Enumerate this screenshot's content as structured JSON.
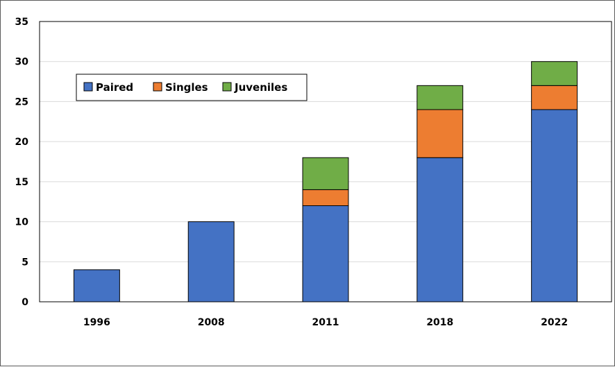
{
  "chart_data": {
    "type": "bar",
    "stacked": true,
    "categories": [
      "1996",
      "2008",
      "2011",
      "2018",
      "2022"
    ],
    "series": [
      {
        "name": "Paired",
        "values": [
          4,
          10,
          12,
          18,
          24
        ],
        "color": "#4472C4"
      },
      {
        "name": "Singles",
        "values": [
          0,
          0,
          2,
          6,
          3
        ],
        "color": "#ED7D31"
      },
      {
        "name": "Juveniles",
        "values": [
          0,
          0,
          4,
          3,
          3
        ],
        "color": "#70AD47"
      }
    ],
    "title": "",
    "xlabel": "",
    "ylabel": "",
    "ylim": [
      0,
      35
    ],
    "yticks": [
      0,
      5,
      10,
      15,
      20,
      25,
      30,
      35
    ],
    "grid": true,
    "legend_position": "upper-left"
  }
}
